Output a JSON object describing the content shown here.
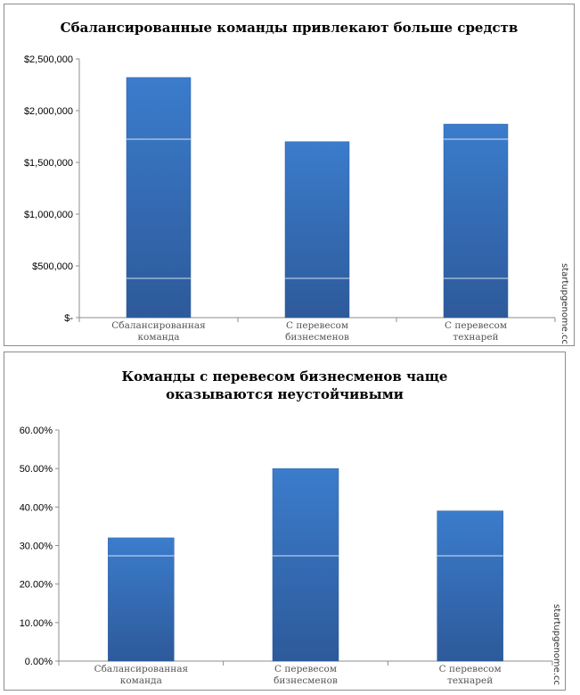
{
  "chart_data": [
    {
      "type": "bar",
      "title": "Сбалансированные команды привлекают больше средств",
      "categories": [
        [
          "Сбалансированная",
          "команда"
        ],
        [
          "С перевесом",
          "бизнесменов"
        ],
        [
          "С перевесом",
          "технарей"
        ]
      ],
      "values": [
        2320000,
        1700000,
        1870000
      ],
      "ylim": [
        0,
        2500000
      ],
      "yticks": [
        0,
        500000,
        1000000,
        1500000,
        2000000,
        2500000
      ],
      "ytick_labels": [
        "$-",
        "$500,000",
        "$1,000,000",
        "$1,500,000",
        "$2,000,000",
        "$2,500,000"
      ],
      "grid": false,
      "bar_color": "#3a74c0",
      "watermark": "startupgenome.cc"
    },
    {
      "type": "bar",
      "title": [
        "Команды с перевесом бизнесменов чаще",
        "оказываются неустойчивыми"
      ],
      "categories": [
        [
          "Сбалансированная",
          "команда"
        ],
        [
          "С перевесом",
          "бизнесменов"
        ],
        [
          "С перевесом",
          "технарей"
        ]
      ],
      "values": [
        0.32,
        0.5,
        0.39
      ],
      "ylim": [
        0,
        0.6
      ],
      "yticks": [
        0,
        0.1,
        0.2,
        0.3,
        0.4,
        0.5,
        0.6
      ],
      "ytick_labels": [
        "0.00%",
        "10.00%",
        "20.00%",
        "30.00%",
        "40.00%",
        "50.00%",
        "60.00%"
      ],
      "grid": false,
      "bar_color": "#3a74c0",
      "watermark": "startupgenome.cc"
    }
  ]
}
